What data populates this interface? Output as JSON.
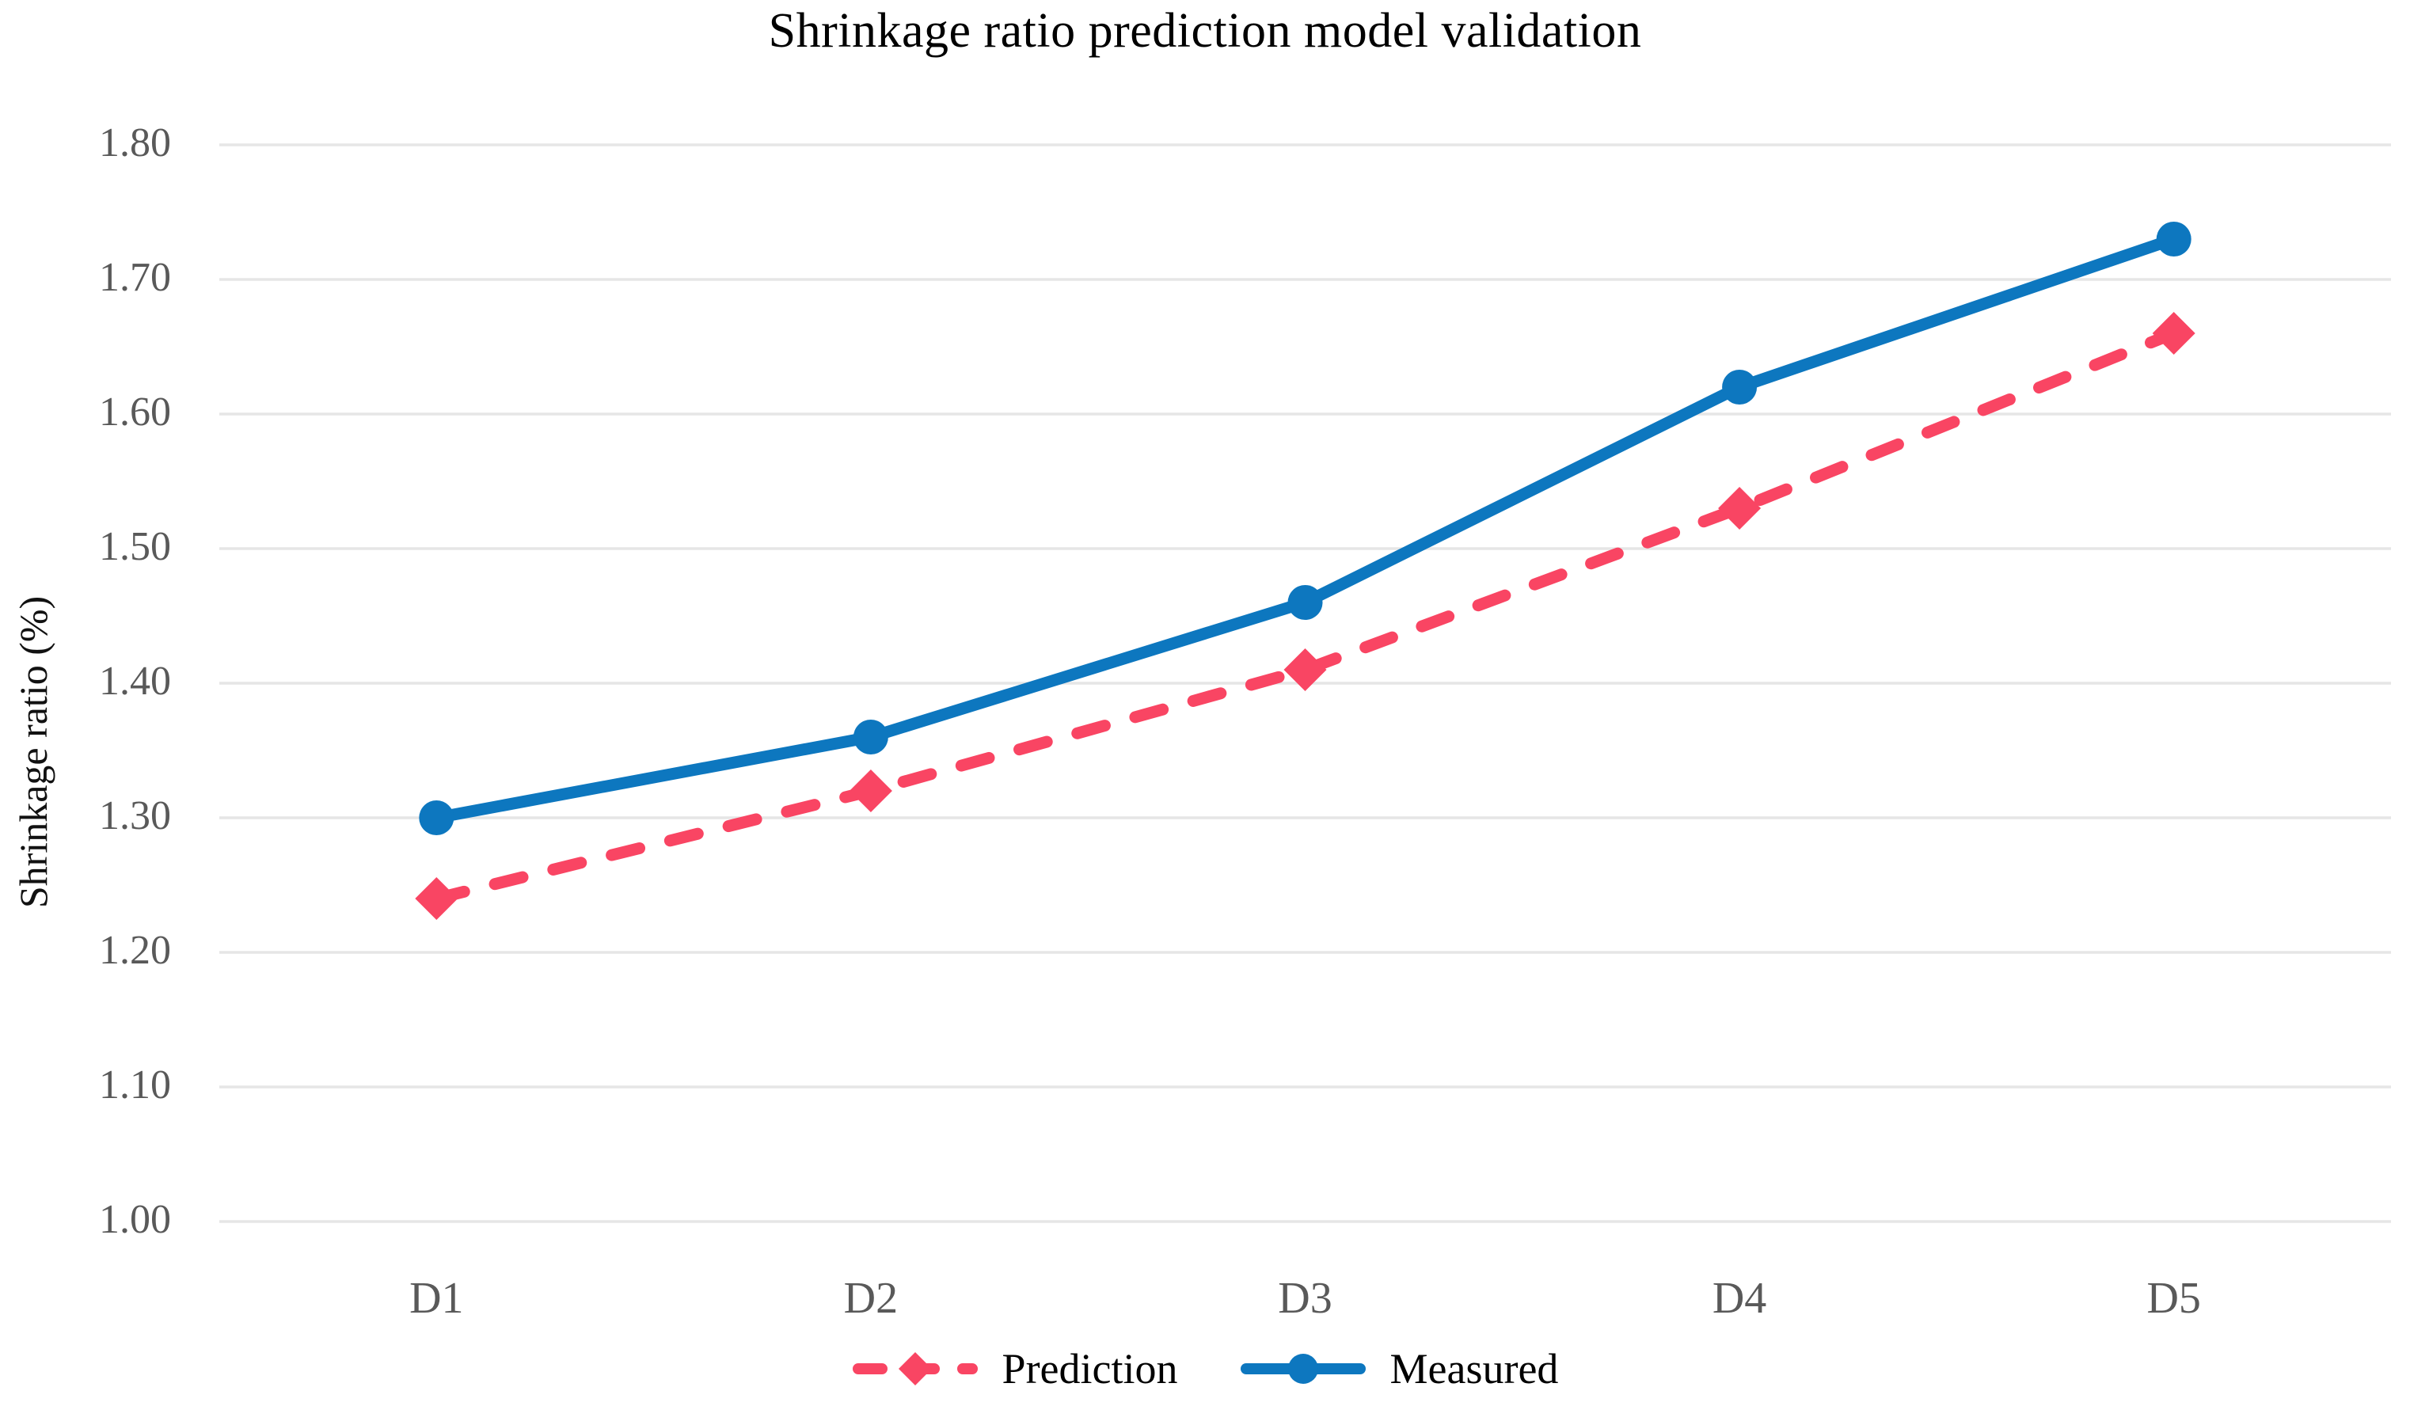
{
  "chart_data": {
    "type": "line",
    "title": "Shrinkage ratio prediction model validation",
    "categories": [
      "D1",
      "D2",
      "D3",
      "D4",
      "D5"
    ],
    "series": [
      {
        "name": "Prediction",
        "values": [
          1.24,
          1.32,
          1.41,
          1.53,
          1.66
        ],
        "color": "#f94563",
        "line_style": "dashed",
        "marker": "diamond"
      },
      {
        "name": "Measured",
        "values": [
          1.3,
          1.36,
          1.46,
          1.62,
          1.73
        ],
        "color": "#0d77bf",
        "line_style": "solid",
        "marker": "circle"
      }
    ],
    "xlabel": "",
    "ylabel": "Shrinkage ratio (%)",
    "ylim": [
      1.0,
      1.8
    ],
    "ytick_step": 0.1,
    "ytick_labels": [
      "1.80",
      "1.70",
      "1.60",
      "1.50",
      "1.40",
      "1.30",
      "1.20",
      "1.10",
      "1.00"
    ],
    "grid": true,
    "legend_position": "bottom",
    "colors": {
      "grid": "#e6e6e6",
      "tick_text": "#595959",
      "title_text": "#000000"
    }
  }
}
